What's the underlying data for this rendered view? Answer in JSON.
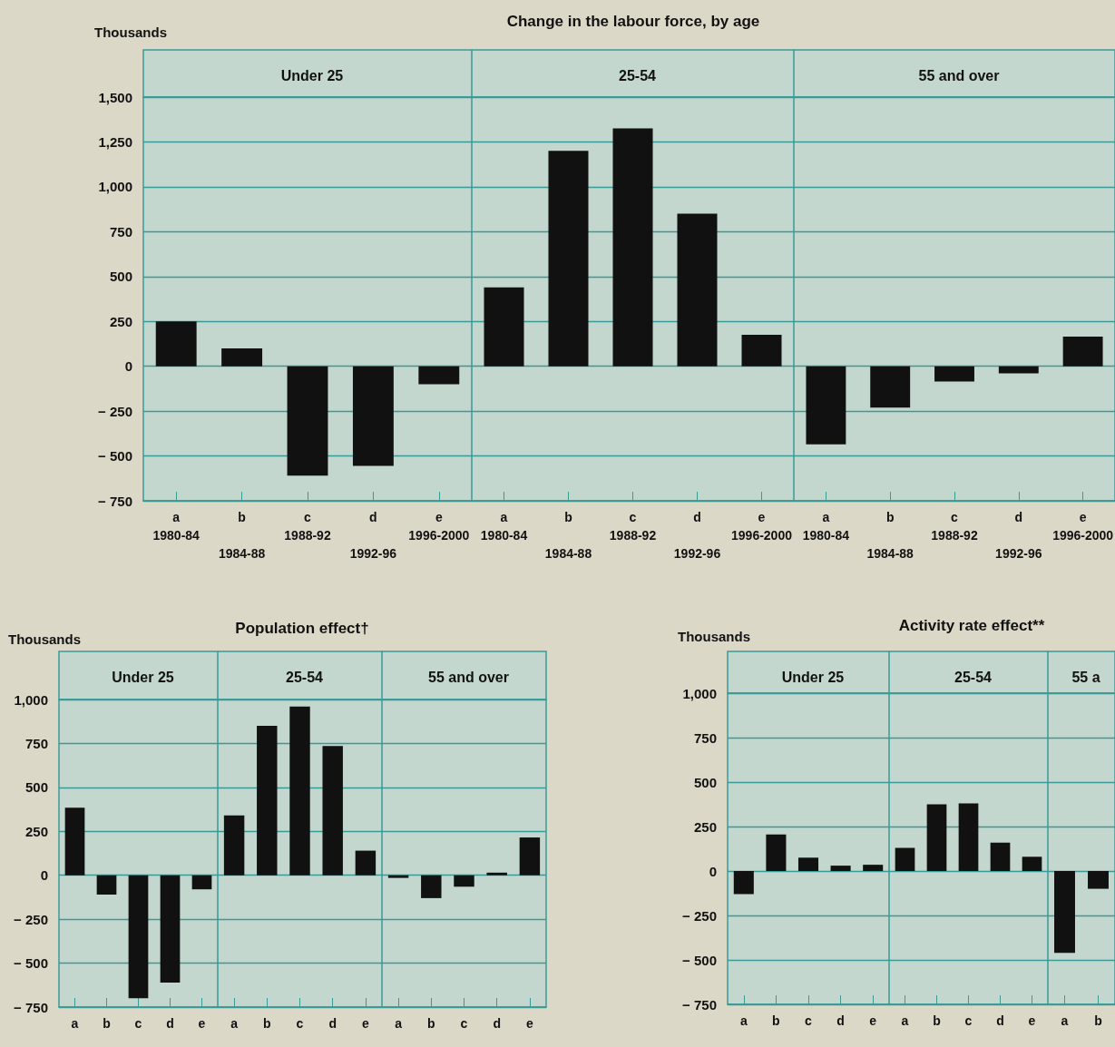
{
  "chart_data": [
    {
      "type": "bar",
      "title": "Under 25",
      "ylabel": "Thousands",
      "annotations": [
        "Change in the labour force, by age"
      ],
      "categories": [
        "a\n1980-84",
        "b\n1984-88",
        "c\n1988-92",
        "d\n1992-96",
        "e\n1996-2000"
      ],
      "values": [
        250,
        100,
        -610,
        -555,
        -100
      ],
      "color": "#111111",
      "ylim": [
        -750,
        1500
      ],
      "yticks": [
        {
          "value": 1500,
          "label": "1,500"
        },
        {
          "value": 1250,
          "label": "1,250"
        },
        {
          "value": 1000,
          "label": "1,000"
        },
        750,
        500,
        250,
        0,
        {
          "value": -250,
          "label": "− 250"
        },
        {
          "value": -500,
          "label": "− 500"
        },
        {
          "value": -750,
          "label": "− 750"
        }
      ],
      "grid": "y"
    },
    {
      "type": "bar",
      "title": "25-54",
      "categories": [
        "a\n1980-84",
        "b\n1984-88",
        "c\n1988-92",
        "d\n1992-96",
        "e\n1996-2000"
      ],
      "values": [
        440,
        1200,
        1325,
        850,
        175
      ],
      "color": "#111111",
      "ylim": [
        -750,
        1500
      ],
      "yticks": [
        {
          "value": 1500,
          "label": null
        },
        {
          "value": 1250,
          "label": null
        },
        {
          "value": 1000,
          "label": null
        },
        {
          "value": 750,
          "label": null
        },
        {
          "value": 500,
          "label": null
        },
        {
          "value": 250,
          "label": null
        },
        {
          "value": 0,
          "label": null
        },
        {
          "value": -250,
          "label": null
        },
        {
          "value": -500,
          "label": null
        },
        {
          "value": -750,
          "label": null
        }
      ],
      "grid": "y",
      "tick_labels": "x"
    },
    {
      "type": "bar",
      "title": "55 and over",
      "categories": [
        "a\n1980-84",
        "b\n1984-88",
        "c\n1988-92",
        "d\n1992-96",
        "e\n1996-2000"
      ],
      "values": [
        -435,
        -230,
        -85,
        -40,
        165
      ],
      "color": "#111111",
      "ylim": [
        -750,
        1500
      ],
      "yticks": [
        {
          "value": 1500,
          "label": null
        },
        {
          "value": 1250,
          "label": null
        },
        {
          "value": 1000,
          "label": null
        },
        {
          "value": 750,
          "label": null
        },
        {
          "value": 500,
          "label": null
        },
        {
          "value": 250,
          "label": null
        },
        {
          "value": 0,
          "label": null
        },
        {
          "value": -250,
          "label": null
        },
        {
          "value": -500,
          "label": null
        },
        {
          "value": -750,
          "label": null
        }
      ],
      "grid": "y",
      "tick_labels": "x"
    },
    {
      "type": "bar",
      "title": "Under 25",
      "ylabel": "Thousands",
      "annotations": [
        "Population effect†"
      ],
      "categories": [
        "a",
        "b",
        "c",
        "d",
        "e"
      ],
      "values": [
        385,
        -110,
        -700,
        -610,
        -80
      ],
      "color": "#111111",
      "ylim": [
        -750,
        1000
      ],
      "yticks": [
        {
          "value": 1000,
          "label": "1,000"
        },
        750,
        500,
        250,
        0,
        {
          "value": -250,
          "label": "− 250"
        },
        {
          "value": -500,
          "label": "− 500"
        },
        {
          "value": -750,
          "label": "− 750"
        }
      ],
      "grid": "y"
    },
    {
      "type": "bar",
      "title": "25-54",
      "categories": [
        "a",
        "b",
        "c",
        "d",
        "e"
      ],
      "values": [
        340,
        850,
        960,
        735,
        140
      ],
      "color": "#111111",
      "ylim": [
        -750,
        1000
      ],
      "yticks": [
        {
          "value": 1000,
          "label": null
        },
        {
          "value": 750,
          "label": null
        },
        {
          "value": 500,
          "label": null
        },
        {
          "value": 250,
          "label": null
        },
        {
          "value": 0,
          "label": null
        },
        {
          "value": -250,
          "label": null
        },
        {
          "value": -500,
          "label": null
        },
        {
          "value": -750,
          "label": null
        }
      ],
      "grid": "y",
      "tick_labels": "x"
    },
    {
      "type": "bar",
      "title": "55 and over",
      "categories": [
        "a",
        "b",
        "c",
        "d",
        "e"
      ],
      "values": [
        -15,
        -130,
        -65,
        15,
        215
      ],
      "color": "#111111",
      "ylim": [
        -750,
        1000
      ],
      "yticks": [
        {
          "value": 1000,
          "label": null
        },
        {
          "value": 750,
          "label": null
        },
        {
          "value": 500,
          "label": null
        },
        {
          "value": 250,
          "label": null
        },
        {
          "value": 0,
          "label": null
        },
        {
          "value": -250,
          "label": null
        },
        {
          "value": -500,
          "label": null
        },
        {
          "value": -750,
          "label": null
        }
      ],
      "grid": "y",
      "tick_labels": "x"
    },
    {
      "type": "bar",
      "title": "Under 25",
      "ylabel": "Thousands",
      "annotations": [
        "Activity rate effect**"
      ],
      "categories": [
        "a",
        "b",
        "c",
        "d",
        "e"
      ],
      "values": [
        -130,
        205,
        75,
        30,
        35
      ],
      "color": "#111111",
      "ylim": [
        -750,
        1000
      ],
      "yticks": [
        {
          "value": 1000,
          "label": "1,000"
        },
        750,
        500,
        250,
        0,
        {
          "value": -250,
          "label": "− 250"
        },
        {
          "value": -500,
          "label": "− 500"
        },
        {
          "value": -750,
          "label": "− 750"
        }
      ],
      "grid": "y"
    },
    {
      "type": "bar",
      "title": "25-54",
      "categories": [
        "a",
        "b",
        "c",
        "d",
        "e"
      ],
      "values": [
        130,
        375,
        380,
        160,
        80
      ],
      "color": "#111111",
      "ylim": [
        -750,
        1000
      ],
      "yticks": [
        {
          "value": 1000,
          "label": null
        },
        {
          "value": 750,
          "label": null
        },
        {
          "value": 500,
          "label": null
        },
        {
          "value": 250,
          "label": null
        },
        {
          "value": 0,
          "label": null
        },
        {
          "value": -250,
          "label": null
        },
        {
          "value": -500,
          "label": null
        },
        {
          "value": -750,
          "label": null
        }
      ],
      "grid": "y",
      "tick_labels": "x"
    },
    {
      "type": "bar",
      "title": "55 a",
      "categories": [
        "a",
        "b"
      ],
      "values": [
        -460,
        -100
      ],
      "color": "#111111",
      "ylim": [
        -750,
        1000
      ],
      "yticks": [
        {
          "value": 1000,
          "label": null
        },
        {
          "value": 750,
          "label": null
        },
        {
          "value": 500,
          "label": null
        },
        {
          "value": 250,
          "label": null
        },
        {
          "value": 0,
          "label": null
        },
        {
          "value": -250,
          "label": null
        },
        {
          "value": -500,
          "label": null
        },
        {
          "value": -750,
          "label": null
        }
      ],
      "grid": "y",
      "tick_labels": "x"
    }
  ]
}
